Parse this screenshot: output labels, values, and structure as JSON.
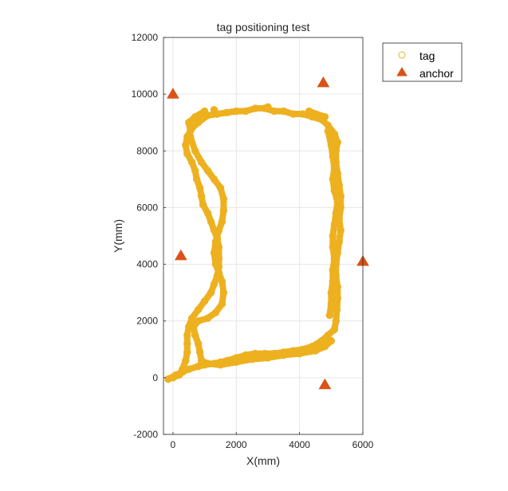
{
  "chart_data": {
    "type": "scatter",
    "title": "tag positioning test",
    "xlabel": "X(mm)",
    "ylabel": "Y(mm)",
    "xlim": [
      -300,
      6000
    ],
    "ylim": [
      -2000,
      12000
    ],
    "xticks": [
      0,
      2000,
      4000,
      6000
    ],
    "yticks": [
      -2000,
      0,
      2000,
      4000,
      6000,
      8000,
      10000,
      12000
    ],
    "grid": true,
    "legend_position": "outside-top-right",
    "series": [
      {
        "name": "tag",
        "marker": "circle",
        "color": "#EDB120",
        "points": [
          [
            -150,
            -50
          ],
          [
            100,
            100
          ],
          [
            300,
            200
          ],
          [
            500,
            300
          ],
          [
            800,
            400
          ],
          [
            1000,
            450
          ],
          [
            1300,
            500
          ],
          [
            1500,
            550
          ],
          [
            1700,
            600
          ],
          [
            2000,
            700
          ],
          [
            2300,
            800
          ],
          [
            2600,
            850
          ],
          [
            2900,
            850
          ],
          [
            3200,
            850
          ],
          [
            3500,
            900
          ],
          [
            3800,
            950
          ],
          [
            4100,
            1000
          ],
          [
            4400,
            1100
          ],
          [
            4700,
            1300
          ],
          [
            4900,
            1500
          ],
          [
            5100,
            1700
          ],
          [
            5150,
            2000
          ],
          [
            5180,
            2400
          ],
          [
            5200,
            2800
          ],
          [
            5200,
            3200
          ],
          [
            5150,
            3600
          ],
          [
            5150,
            4000
          ],
          [
            5200,
            4400
          ],
          [
            5250,
            4800
          ],
          [
            5300,
            5200
          ],
          [
            5250,
            5600
          ],
          [
            5300,
            6000
          ],
          [
            5300,
            6400
          ],
          [
            5250,
            6800
          ],
          [
            5200,
            7200
          ],
          [
            5150,
            7600
          ],
          [
            5150,
            8000
          ],
          [
            5200,
            8300
          ],
          [
            5100,
            8600
          ],
          [
            4900,
            8900
          ],
          [
            4700,
            9100
          ],
          [
            4400,
            9200
          ],
          [
            4100,
            9300
          ],
          [
            3800,
            9300
          ],
          [
            3500,
            9400
          ],
          [
            3200,
            9400
          ],
          [
            2900,
            9500
          ],
          [
            2600,
            9500
          ],
          [
            2300,
            9400
          ],
          [
            2000,
            9400
          ],
          [
            1700,
            9350
          ],
          [
            1400,
            9300
          ],
          [
            1100,
            9250
          ],
          [
            800,
            9000
          ],
          [
            600,
            8800
          ],
          [
            450,
            8500
          ],
          [
            400,
            8200
          ],
          [
            450,
            7900
          ],
          [
            600,
            7600
          ],
          [
            700,
            7300
          ],
          [
            750,
            7000
          ],
          [
            850,
            6700
          ],
          [
            900,
            6400
          ],
          [
            950,
            6100
          ],
          [
            1100,
            5800
          ],
          [
            1200,
            5500
          ],
          [
            1300,
            5200
          ],
          [
            1400,
            4900
          ],
          [
            1450,
            4600
          ],
          [
            1450,
            4200
          ],
          [
            1450,
            3900
          ],
          [
            1400,
            3600
          ],
          [
            1300,
            3300
          ],
          [
            1200,
            3000
          ],
          [
            1000,
            2700
          ],
          [
            800,
            2400
          ],
          [
            600,
            2100
          ],
          [
            500,
            1800
          ],
          [
            450,
            1500
          ],
          [
            450,
            1200
          ],
          [
            450,
            900
          ],
          [
            400,
            600
          ],
          [
            300,
            300
          ],
          [
            200,
            100
          ],
          [
            0,
            0
          ],
          [
            550,
            8500
          ],
          [
            700,
            8000
          ],
          [
            900,
            7600
          ],
          [
            1100,
            7300
          ],
          [
            1300,
            7000
          ],
          [
            1500,
            6700
          ],
          [
            1600,
            6300
          ],
          [
            1600,
            5900
          ],
          [
            1550,
            5500
          ],
          [
            1450,
            5200
          ],
          [
            1350,
            4800
          ],
          [
            1300,
            4400
          ],
          [
            1350,
            4000
          ],
          [
            1450,
            3700
          ],
          [
            1550,
            3400
          ],
          [
            1600,
            3000
          ],
          [
            1550,
            2600
          ],
          [
            1350,
            2300
          ],
          [
            1100,
            2100
          ],
          [
            800,
            2000
          ],
          [
            650,
            1800
          ],
          [
            700,
            1500
          ],
          [
            800,
            1200
          ],
          [
            850,
            900
          ],
          [
            900,
            600
          ],
          [
            1100,
            500
          ],
          [
            1500,
            450
          ],
          [
            2000,
            550
          ],
          [
            2500,
            650
          ],
          [
            3000,
            700
          ],
          [
            3500,
            800
          ],
          [
            4000,
            850
          ],
          [
            4500,
            950
          ],
          [
            4800,
            1100
          ],
          [
            5000,
            1300
          ],
          [
            4900,
            8700
          ],
          [
            5000,
            8200
          ],
          [
            5050,
            7800
          ],
          [
            5100,
            7400
          ],
          [
            5050,
            7000
          ],
          [
            5100,
            6600
          ],
          [
            5200,
            6200
          ],
          [
            5150,
            5800
          ],
          [
            5100,
            5400
          ],
          [
            5050,
            5000
          ],
          [
            5050,
            4600
          ],
          [
            5100,
            4200
          ],
          [
            5050,
            3800
          ],
          [
            5050,
            3400
          ],
          [
            5000,
            3000
          ],
          [
            5000,
            2600
          ],
          [
            4950,
            2200
          ],
          [
            1000,
            9400
          ],
          [
            700,
            9200
          ],
          [
            500,
            9000
          ],
          [
            550,
            8700
          ],
          [
            1300,
            9450
          ],
          [
            3000,
            9550
          ],
          [
            4300,
            9400
          ],
          [
            4800,
            9200
          ]
        ]
      },
      {
        "name": "anchor",
        "marker": "triangle",
        "color": "#D95319",
        "points": [
          [
            0,
            10000
          ],
          [
            4750,
            10400
          ],
          [
            250,
            4300
          ],
          [
            6000,
            4100
          ],
          [
            4800,
            -250
          ]
        ]
      }
    ]
  }
}
